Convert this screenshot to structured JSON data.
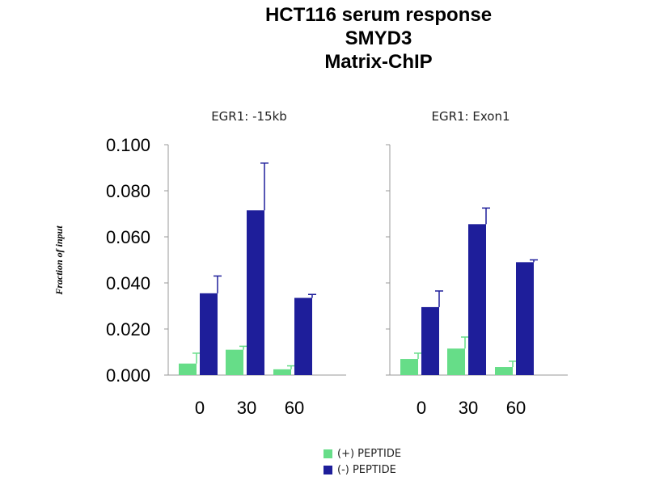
{
  "chart_data": {
    "type": "bar",
    "title": [
      "HCT116 serum response",
      "SMYD3",
      "Matrix-ChIP"
    ],
    "ylabel": "Fraction of input",
    "ylim": [
      0,
      0.1
    ],
    "yticks": [
      "0.000",
      "0.020",
      "0.040",
      "0.060",
      "0.080",
      "0.100"
    ],
    "categories": [
      "0",
      "30",
      "60"
    ],
    "colors": {
      "plus": "#66dd88",
      "minus": "#1e1e9a"
    },
    "legend": [
      "(+) PEPTIDE",
      "(-) PEPTIDE"
    ],
    "panels": [
      {
        "title": "EGR1: -15kb",
        "series": [
          {
            "name": "(+) PEPTIDE",
            "values": [
              0.005,
              0.011,
              0.0025
            ],
            "errors": [
              0.0045,
              0.0015,
              0.0015
            ]
          },
          {
            "name": "(-) PEPTIDE",
            "values": [
              0.0355,
              0.0715,
              0.0335
            ],
            "errors": [
              0.0075,
              0.0205,
              0.0015
            ]
          }
        ]
      },
      {
        "title": "EGR1: Exon1",
        "series": [
          {
            "name": "(+) PEPTIDE",
            "values": [
              0.007,
              0.0115,
              0.0035
            ],
            "errors": [
              0.0025,
              0.005,
              0.0025
            ]
          },
          {
            "name": "(-) PEPTIDE",
            "values": [
              0.0295,
              0.0655,
              0.049
            ],
            "errors": [
              0.007,
              0.007,
              0.001
            ]
          }
        ]
      }
    ]
  }
}
